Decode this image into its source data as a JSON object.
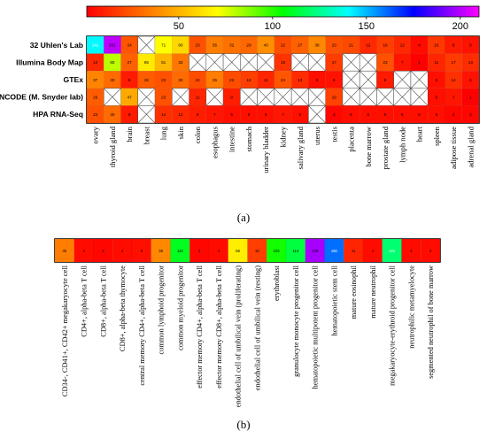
{
  "colorscale": {
    "ticks": [
      50,
      100,
      150,
      200
    ],
    "min": 1,
    "max": 210,
    "stops": [
      "#ff0000",
      "#ff8000",
      "#ffff00",
      "#00ff00",
      "#00ffff",
      "#0000ff",
      "#ff00ff"
    ]
  },
  "panel_a_label": "(a)",
  "panel_b_label": "(b)",
  "chart_data": [
    {
      "type": "heatmap",
      "rows": [
        "32 Uhlen's Lab",
        "Illumina Body Map",
        "GTEx",
        "ENCODE (M. Snyder lab)",
        "HPA RNA-Seq"
      ],
      "columns": [
        "ovary",
        "thyroid gland",
        "brain",
        "breast",
        "lung",
        "skin",
        "colon",
        "esophagus",
        "intestine",
        "stomach",
        "urinary bladder",
        "kidney",
        "salivary gland",
        "uterus",
        "testis",
        "placenta",
        "bone marrow",
        "prostate gland",
        "lymph node",
        "heart",
        "spleen",
        "adipose tissue",
        "adrenal gland"
      ],
      "values": [
        [
          141,
          201,
          24,
          null,
          71,
          60,
          23,
          35,
          32,
          29,
          40,
          22,
          27,
          38,
          23,
          21,
          12,
          18,
          12,
          4,
          16,
          8,
          6
        ],
        [
          12,
          80,
          27,
          65,
          51,
          33,
          null,
          null,
          null,
          null,
          null,
          15,
          null,
          null,
          17,
          null,
          null,
          23,
          7,
          1,
          11,
          17,
          13
        ],
        [
          37,
          30,
          8,
          26,
          23,
          30,
          22,
          35,
          22,
          18,
          11,
          24,
          13,
          5,
          6,
          null,
          null,
          8,
          null,
          null,
          5,
          14,
          6
        ],
        [
          26,
          null,
          47,
          null,
          23,
          null,
          11,
          null,
          9,
          null,
          null,
          null,
          null,
          null,
          19,
          null,
          null,
          null,
          null,
          null,
          5,
          7,
          1
        ],
        [
          23,
          30,
          8,
          null,
          14,
          12,
          9,
          7,
          5,
          5,
          5,
          7,
          5,
          null,
          3,
          5,
          5,
          5,
          5,
          5,
          5,
          3,
          3
        ]
      ]
    },
    {
      "type": "heatmap",
      "rows": [
        ""
      ],
      "columns": [
        "CD34-, CD41+, CD42+ megakaryocyte cell",
        "CD4+, alpha-beta T cell",
        "CD8+, alpha-beta T cell",
        "CD8+, alpha-beta thymocyte",
        "central memory CD4+, alpha-beta T cell",
        "common lymphoid progenitor",
        "common myeloid progenitor",
        "effector memory CD4+, alpha-beta T cell",
        "effector memory CD8+, alpha-beta T cell",
        "endothelial cell of umbilical vein (proliferating)",
        "endothelial cell of umbilical vein (resting)",
        "erythroblast",
        "granulocyte monocyte progenitor cell",
        "hematopoietic multipotent progenitor cell",
        "hematopoietic stem cell",
        "mature eosinophil",
        "mature neutrophil",
        "megakaryocyte-erythroid progenitor cell",
        "neutrophilic metamyelocyte",
        "segmented neutrophil of bone marrow"
      ],
      "values": [
        [
          35,
          4,
          3,
          4,
          5,
          38,
          110,
          3,
          4,
          66,
          18,
          103,
          114,
          198,
          160,
          11,
          4,
          121,
          4,
          4
        ]
      ]
    }
  ]
}
